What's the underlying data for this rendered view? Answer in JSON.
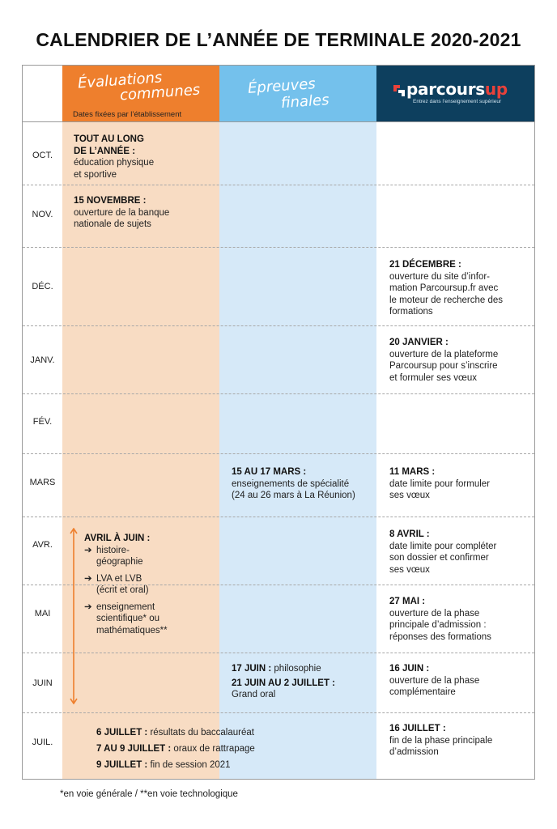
{
  "title": "CALENDRIER DE L’ANNÉE DE TERMINALE 2020-2021",
  "headers": {
    "evaluations_line1": "Évaluations",
    "evaluations_line2": "communes",
    "evaluations_sub": "Dates fixées par l’établissement",
    "epreuves_line1": "Épreuves",
    "epreuves_line2": "finales",
    "logo_main": "parcours",
    "logo_up": "up",
    "logo_tagline": "Entrez dans l’enseignement supérieur"
  },
  "months": [
    "OCT.",
    "NOV.",
    "DÉC.",
    "JANV.",
    "FÉV.",
    "MARS",
    "AVR.",
    "MAI",
    "JUIN",
    "JUIL."
  ],
  "evaluations": {
    "oct_title_1": "TOUT AU LONG",
    "oct_title_2": "DE L’ANNÉE :",
    "oct_text_1": "éducation physique",
    "oct_text_2": "et sportive",
    "nov_title": "15 NOVEMBRE :",
    "nov_text_1": "ouverture de la banque",
    "nov_text_2": "nationale de sujets",
    "avr_title": "AVRIL À JUIN :",
    "avr_item1_1": "histoire-",
    "avr_item1_2": "géographie",
    "avr_item2_1": "LVA et LVB",
    "avr_item2_2": "(écrit et oral)",
    "avr_item3_1": "enseignement",
    "avr_item3_2": "scientifique* ou",
    "avr_item3_3": "mathématiques**",
    "arrow_glyph": "➔"
  },
  "epreuves": {
    "mars_title": "15 AU 17 MARS :",
    "mars_text_1": "enseignements de spécialité",
    "mars_text_2": "(24 au 26 mars à La Réunion)",
    "juin_title_1": "17 JUIN :",
    "juin_text_1": " philosophie",
    "juin_title_2": "21 JUIN AU 2 JUILLET :",
    "juin_text_2": "Grand oral"
  },
  "juillet": {
    "l1_b": "6 JUILLET :",
    "l1_t": " résultats du baccalauréat",
    "l2_b": "7 AU 9 JUILLET :",
    "l2_t": " oraux de rattrapage",
    "l3_b": "9 JUILLET :",
    "l3_t": " fin de session 2021"
  },
  "parcoursup": {
    "dec_title": "21 DÉCEMBRE :",
    "dec_1": "ouverture du site d’infor-",
    "dec_2": "mation Parcoursup.fr avec",
    "dec_3": "le moteur de recherche des",
    "dec_4": "formations",
    "janv_title": "20 JANVIER :",
    "janv_1": "ouverture de la plateforme",
    "janv_2": "Parcoursup pour s’inscrire",
    "janv_3": "et formuler ses vœux",
    "mars_title": "11 MARS :",
    "mars_1": "date limite pour formuler",
    "mars_2": "ses vœux",
    "avr_title": "8 AVRIL :",
    "avr_1": "date limite pour compléter",
    "avr_2": "son dossier et confirmer",
    "avr_3": "ses vœux",
    "mai_title": "27 MAI :",
    "mai_1": "ouverture de la phase",
    "mai_2": "principale d’admission :",
    "mai_3": "réponses des formations",
    "juin_title": "16 JUIN :",
    "juin_1": "ouverture de la phase",
    "juin_2": "complémentaire",
    "juil_title": "16 JUILLET :",
    "juil_1": "fin de la phase principale",
    "juil_2": "d’admission"
  },
  "footnote": "*en voie générale / **en voie technologique",
  "colors": {
    "orange": "#ee7f2d",
    "orange_light": "#f8dcc3",
    "blue": "#74c1ec",
    "blue_light": "#d6e9f8",
    "navy": "#0d3f5e",
    "logo_red": "#e8413a"
  }
}
